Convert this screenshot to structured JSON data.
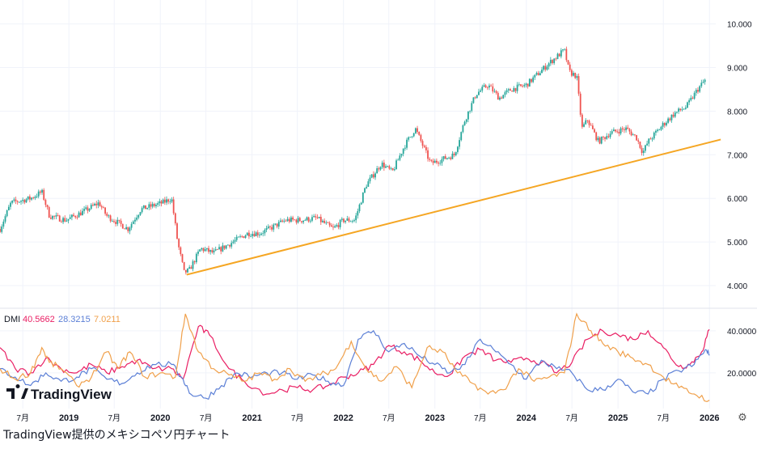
{
  "caption": "TradingView提供のメキシコペソ円チャート",
  "logo_text": "TradingView",
  "settings_icon": "gear-icon",
  "colors": {
    "up": "#26a69a",
    "down": "#ef5350",
    "trendline": "#f5a623",
    "di_plus": "#e91e63",
    "di_minus": "#5b7fd6",
    "adx": "#f0a04b",
    "grid": "#f0f3fa"
  },
  "chart_data": [
    {
      "type": "candlestick",
      "title": "",
      "x_range": [
        "2018-04-01",
        "2026-01-10"
      ],
      "y_range": [
        3.5,
        10.4
      ],
      "y_ticks": [
        "4.000",
        "5.000",
        "6.000",
        "7.000",
        "8.000",
        "9.000",
        "10.000"
      ],
      "x_ticks": [
        {
          "date": "2018-07-01",
          "label": "7月"
        },
        {
          "date": "2019-01-01",
          "label": "2019"
        },
        {
          "date": "2019-07-01",
          "label": "7月"
        },
        {
          "date": "2020-01-01",
          "label": "2020"
        },
        {
          "date": "2020-07-01",
          "label": "7月"
        },
        {
          "date": "2021-01-01",
          "label": "2021"
        },
        {
          "date": "2021-07-01",
          "label": "7月"
        },
        {
          "date": "2022-01-01",
          "label": "2022"
        },
        {
          "date": "2022-07-01",
          "label": "7月"
        },
        {
          "date": "2023-01-01",
          "label": "2023"
        },
        {
          "date": "2023-07-01",
          "label": "7月"
        },
        {
          "date": "2024-01-01",
          "label": "2024"
        },
        {
          "date": "2024-07-01",
          "label": "7月"
        },
        {
          "date": "2025-01-01",
          "label": "2025"
        },
        {
          "date": "2025-07-01",
          "label": "7月"
        },
        {
          "date": "2026-01-01",
          "label": "2026"
        }
      ],
      "price_path": [
        [
          "2018-04-01",
          5.3
        ],
        [
          "2018-05-15",
          5.9
        ],
        [
          "2018-08-01",
          6.0
        ],
        [
          "2018-09-15",
          6.15
        ],
        [
          "2018-10-15",
          5.6
        ],
        [
          "2018-12-20",
          5.5
        ],
        [
          "2019-03-01",
          5.7
        ],
        [
          "2019-05-01",
          5.9
        ],
        [
          "2019-06-01",
          5.6
        ],
        [
          "2019-08-25",
          5.3
        ],
        [
          "2019-10-15",
          5.75
        ],
        [
          "2020-01-10",
          5.9
        ],
        [
          "2020-02-15",
          6.0
        ],
        [
          "2020-03-10",
          5.0
        ],
        [
          "2020-04-05",
          4.3
        ],
        [
          "2020-04-25",
          4.35
        ],
        [
          "2020-06-10",
          4.85
        ],
        [
          "2020-08-01",
          4.75
        ],
        [
          "2020-10-01",
          4.95
        ],
        [
          "2020-12-15",
          5.2
        ],
        [
          "2021-02-01",
          5.2
        ],
        [
          "2021-03-10",
          5.3
        ],
        [
          "2021-05-15",
          5.5
        ],
        [
          "2021-07-15",
          5.5
        ],
        [
          "2021-09-15",
          5.55
        ],
        [
          "2021-11-20",
          5.3
        ],
        [
          "2022-01-01",
          5.5
        ],
        [
          "2022-02-15",
          5.5
        ],
        [
          "2022-04-01",
          6.3
        ],
        [
          "2022-06-01",
          6.8
        ],
        [
          "2022-07-15",
          6.6
        ],
        [
          "2022-09-01",
          7.2
        ],
        [
          "2022-10-15",
          7.6
        ],
        [
          "2022-12-15",
          6.8
        ],
        [
          "2023-02-01",
          6.9
        ],
        [
          "2023-03-20",
          7.0
        ],
        [
          "2023-05-01",
          7.8
        ],
        [
          "2023-06-15",
          8.4
        ],
        [
          "2023-08-01",
          8.6
        ],
        [
          "2023-09-15",
          8.3
        ],
        [
          "2023-11-01",
          8.5
        ],
        [
          "2024-01-01",
          8.6
        ],
        [
          "2024-04-01",
          9.1
        ],
        [
          "2024-06-01",
          9.4
        ],
        [
          "2024-06-20",
          8.9
        ],
        [
          "2024-07-20",
          8.8
        ],
        [
          "2024-08-10",
          7.6
        ],
        [
          "2024-09-01",
          7.8
        ],
        [
          "2024-10-15",
          7.3
        ],
        [
          "2024-12-01",
          7.5
        ],
        [
          "2025-02-01",
          7.6
        ],
        [
          "2025-03-15",
          7.4
        ],
        [
          "2025-04-10",
          7.05
        ],
        [
          "2025-05-01",
          7.3
        ],
        [
          "2025-07-01",
          7.7
        ],
        [
          "2025-08-15",
          7.95
        ],
        [
          "2025-10-01",
          8.1
        ],
        [
          "2025-11-15",
          8.5
        ],
        [
          "2025-12-20",
          8.75
        ]
      ],
      "trendline": {
        "start": [
          "2020-04-15",
          4.25
        ],
        "end": [
          "2026-02-15",
          7.35
        ]
      }
    },
    {
      "type": "line",
      "title": "DMI",
      "values_text": [
        "40.5662",
        "28.3215",
        "7.0211"
      ],
      "y_range": [
        5,
        48
      ],
      "y_ticks": [
        "20.0000",
        "40.0000"
      ],
      "series": [
        {
          "name": "",
          "key": "di_plus",
          "points": [
            [
              "2018-04-01",
              32
            ],
            [
              "2018-06-01",
              22
            ],
            [
              "2018-08-01",
              20
            ],
            [
              "2018-10-01",
              27
            ],
            [
              "2018-12-01",
              22
            ],
            [
              "2019-02-01",
              20
            ],
            [
              "2019-04-01",
              24
            ],
            [
              "2019-06-01",
              20
            ],
            [
              "2019-08-01",
              23
            ],
            [
              "2019-10-01",
              26
            ],
            [
              "2019-12-01",
              22
            ],
            [
              "2020-02-15",
              22
            ],
            [
              "2020-04-01",
              17
            ],
            [
              "2020-06-01",
              42
            ],
            [
              "2020-07-15",
              38
            ],
            [
              "2020-10-01",
              22
            ],
            [
              "2020-12-01",
              16
            ],
            [
              "2021-03-01",
              10
            ],
            [
              "2021-05-01",
              12
            ],
            [
              "2021-07-01",
              13
            ],
            [
              "2021-09-01",
              12
            ],
            [
              "2021-11-01",
              14
            ],
            [
              "2022-01-01",
              18
            ],
            [
              "2022-03-01",
              20
            ],
            [
              "2022-05-01",
              24
            ],
            [
              "2022-07-01",
              33
            ],
            [
              "2022-09-01",
              30
            ],
            [
              "2022-11-01",
              26
            ],
            [
              "2023-01-01",
              20
            ],
            [
              "2023-03-01",
              19
            ],
            [
              "2023-05-01",
              28
            ],
            [
              "2023-07-01",
              31
            ],
            [
              "2023-09-01",
              26
            ],
            [
              "2023-11-01",
              25
            ],
            [
              "2024-01-01",
              27
            ],
            [
              "2024-03-01",
              25
            ],
            [
              "2024-05-01",
              20
            ],
            [
              "2024-07-01",
              25
            ],
            [
              "2024-09-01",
              36
            ],
            [
              "2024-11-01",
              40
            ],
            [
              "2025-01-01",
              38
            ],
            [
              "2025-03-01",
              36
            ],
            [
              "2025-05-01",
              40
            ],
            [
              "2025-07-01",
              32
            ],
            [
              "2025-09-01",
              23
            ],
            [
              "2025-10-15",
              24
            ],
            [
              "2025-12-01",
              30
            ],
            [
              "2026-01-01",
              40.5662
            ]
          ]
        },
        {
          "name": "",
          "key": "di_minus",
          "points": [
            [
              "2018-04-01",
              22
            ],
            [
              "2018-06-01",
              18
            ],
            [
              "2018-08-01",
              14
            ],
            [
              "2018-10-01",
              20
            ],
            [
              "2018-12-01",
              16
            ],
            [
              "2019-02-01",
              18
            ],
            [
              "2019-04-01",
              22
            ],
            [
              "2019-06-01",
              17
            ],
            [
              "2019-08-01",
              15
            ],
            [
              "2019-10-01",
              20
            ],
            [
              "2019-12-01",
              24
            ],
            [
              "2020-02-15",
              24
            ],
            [
              "2020-04-01",
              17
            ],
            [
              "2020-05-01",
              10
            ],
            [
              "2020-07-01",
              8
            ],
            [
              "2020-09-01",
              14
            ],
            [
              "2020-11-01",
              20
            ],
            [
              "2021-01-01",
              18
            ],
            [
              "2021-03-01",
              20
            ],
            [
              "2021-05-01",
              20
            ],
            [
              "2021-07-01",
              17
            ],
            [
              "2021-09-01",
              19
            ],
            [
              "2021-11-01",
              16
            ],
            [
              "2022-01-01",
              14
            ],
            [
              "2022-03-01",
              36
            ],
            [
              "2022-05-01",
              40
            ],
            [
              "2022-07-01",
              30
            ],
            [
              "2022-09-01",
              34
            ],
            [
              "2022-11-01",
              28
            ],
            [
              "2023-01-01",
              24
            ],
            [
              "2023-03-01",
              20
            ],
            [
              "2023-05-01",
              24
            ],
            [
              "2023-07-01",
              36
            ],
            [
              "2023-09-01",
              30
            ],
            [
              "2023-11-01",
              24
            ],
            [
              "2024-01-01",
              17
            ],
            [
              "2024-03-01",
              26
            ],
            [
              "2024-05-01",
              22
            ],
            [
              "2024-07-01",
              20
            ],
            [
              "2024-09-01",
              12
            ],
            [
              "2024-11-01",
              12
            ],
            [
              "2025-01-01",
              17
            ],
            [
              "2025-03-01",
              11
            ],
            [
              "2025-05-01",
              10
            ],
            [
              "2025-07-01",
              17
            ],
            [
              "2025-09-01",
              21
            ],
            [
              "2025-11-01",
              24
            ],
            [
              "2025-12-15",
              31
            ],
            [
              "2026-01-01",
              28.3215
            ]
          ]
        },
        {
          "name": "",
          "key": "adx",
          "points": [
            [
              "2018-04-01",
              22
            ],
            [
              "2018-06-01",
              17
            ],
            [
              "2018-08-01",
              20
            ],
            [
              "2018-09-15",
              32
            ],
            [
              "2018-10-15",
              25
            ],
            [
              "2018-12-01",
              22
            ],
            [
              "2019-02-01",
              14
            ],
            [
              "2019-04-01",
              18
            ],
            [
              "2019-06-01",
              30
            ],
            [
              "2019-07-15",
              22
            ],
            [
              "2019-09-01",
              30
            ],
            [
              "2019-11-01",
              18
            ],
            [
              "2020-01-01",
              20
            ],
            [
              "2020-03-01",
              18
            ],
            [
              "2020-04-10",
              48
            ],
            [
              "2020-06-01",
              30
            ],
            [
              "2020-08-01",
              22
            ],
            [
              "2020-10-01",
              19
            ],
            [
              "2020-12-01",
              16
            ],
            [
              "2021-02-01",
              20
            ],
            [
              "2021-04-01",
              17
            ],
            [
              "2021-06-01",
              22
            ],
            [
              "2021-08-01",
              16
            ],
            [
              "2021-10-01",
              19
            ],
            [
              "2021-12-01",
              22
            ],
            [
              "2022-02-01",
              35
            ],
            [
              "2022-04-01",
              22
            ],
            [
              "2022-06-01",
              16
            ],
            [
              "2022-08-01",
              23
            ],
            [
              "2022-10-01",
              13
            ],
            [
              "2022-12-01",
              32
            ],
            [
              "2023-02-01",
              30
            ],
            [
              "2023-04-01",
              20
            ],
            [
              "2023-06-01",
              15
            ],
            [
              "2023-08-01",
              10
            ],
            [
              "2023-10-01",
              12
            ],
            [
              "2023-12-01",
              22
            ],
            [
              "2024-02-01",
              16
            ],
            [
              "2024-04-01",
              18
            ],
            [
              "2024-06-01",
              20
            ],
            [
              "2024-07-20",
              48
            ],
            [
              "2024-09-15",
              40
            ],
            [
              "2024-11-01",
              34
            ],
            [
              "2025-01-01",
              30
            ],
            [
              "2025-03-01",
              27
            ],
            [
              "2025-05-01",
              24
            ],
            [
              "2025-07-01",
              18
            ],
            [
              "2025-09-01",
              13
            ],
            [
              "2025-11-01",
              10
            ],
            [
              "2026-01-01",
              7.0211
            ]
          ]
        }
      ]
    }
  ]
}
